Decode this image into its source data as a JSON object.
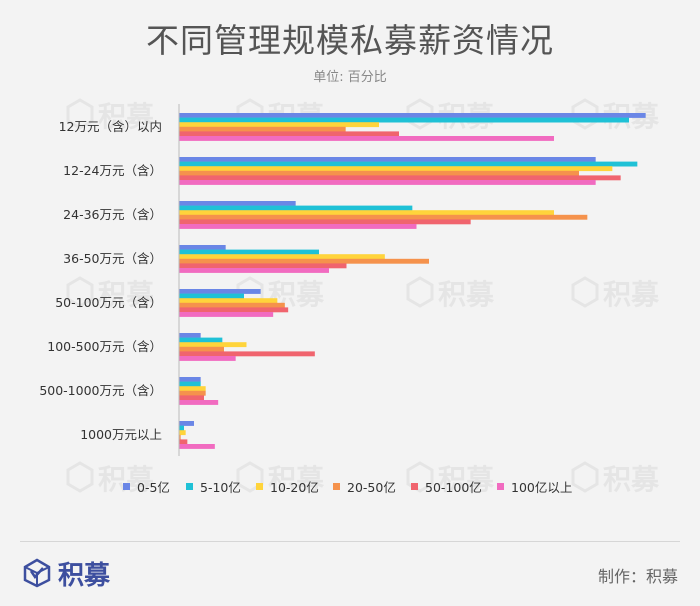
{
  "title": "不同管理规模私募薪资情况",
  "subtitle": "单位: 百分比",
  "footer": {
    "brand": "积募",
    "credit": "制作：积募"
  },
  "watermark_text": "积募",
  "chart_data": {
    "type": "bar",
    "orientation": "horizontal",
    "title": "不同管理规模私募薪资情况",
    "subtitle": "单位: 百分比",
    "xlabel": "",
    "ylabel": "",
    "grid": false,
    "legend_position": "bottom",
    "xlim": [
      0,
      60
    ],
    "categories": [
      "12万元（含）以内",
      "12-24万元（含）",
      "24-36万元（含）",
      "36-50万元（含）",
      "50-100万元（含）",
      "100-500万元（含）",
      "500-1000万元（含）",
      "1000万元以上"
    ],
    "series": [
      {
        "name": "0-5亿",
        "color": "#6a86e6",
        "values": [
          56.0,
          50.0,
          14.0,
          5.6,
          9.8,
          2.6,
          2.6,
          1.8
        ]
      },
      {
        "name": "5-10亿",
        "color": "#1fc1d6",
        "values": [
          54.0,
          55.0,
          28.0,
          16.8,
          7.8,
          5.2,
          2.6,
          0.6
        ]
      },
      {
        "name": "10-20亿",
        "color": "#ffd43b",
        "values": [
          24.0,
          52.0,
          45.0,
          24.7,
          11.8,
          8.1,
          3.2,
          0.8
        ]
      },
      {
        "name": "20-50亿",
        "color": "#f5924c",
        "values": [
          20.0,
          48.0,
          49.0,
          30.0,
          12.7,
          5.4,
          3.2,
          0.2
        ]
      },
      {
        "name": "50-100亿",
        "color": "#f0646e",
        "values": [
          26.4,
          53.0,
          35.0,
          20.1,
          13.1,
          16.3,
          3.0,
          1.0
        ]
      },
      {
        "name": "100亿以上",
        "color": "#f16bc0",
        "values": [
          45.0,
          50.0,
          28.5,
          18.0,
          11.3,
          6.8,
          4.7,
          4.3
        ]
      }
    ]
  }
}
